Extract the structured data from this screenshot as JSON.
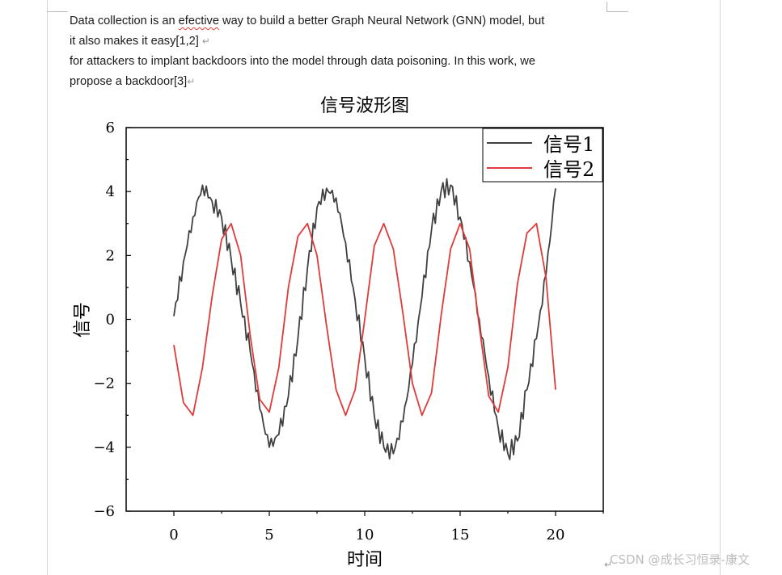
{
  "document": {
    "paragraph1": {
      "before": "Data collection is an ",
      "misspelled": "efective",
      "after": " way to build a better Graph Neural Network (GNN) model, but",
      "line2": "it also makes it easy[1,2]",
      "mark": "↵"
    },
    "paragraph2": {
      "line1": "for attackers to implant backdoors into the model through data poisoning. In this work, we",
      "line2": "propose a backdoor[3]",
      "mark": "↵"
    },
    "end_mark": "↵"
  },
  "watermark": "CSDN @成长习恒录-康文",
  "chart_data": {
    "type": "line",
    "title": "信号波形图",
    "xlabel": "时间",
    "ylabel": "信号",
    "xlim": [
      -2.5,
      22.5
    ],
    "ylim": [
      -6,
      6
    ],
    "xticks": [
      "0",
      "5",
      "10",
      "15",
      "20"
    ],
    "yticks": [
      "6",
      "4",
      "2",
      "0",
      "−2",
      "−4",
      "−6"
    ],
    "legend": {
      "position": "top-right"
    },
    "x": [
      0,
      0.5,
      1,
      1.5,
      2,
      2.5,
      3,
      3.5,
      4,
      4.5,
      5,
      5.5,
      6,
      6.5,
      7,
      7.5,
      8,
      8.5,
      9,
      9.5,
      10,
      10.5,
      11,
      11.5,
      12,
      12.5,
      13,
      13.5,
      14,
      14.5,
      15,
      15.5,
      16,
      16.5,
      17,
      17.5,
      18,
      18.5,
      19,
      19.5,
      20
    ],
    "series": [
      {
        "name": "信号1",
        "color": "#404040",
        "values": [
          0.1,
          1.8,
          3.2,
          4.2,
          3.7,
          3.2,
          1.9,
          0.5,
          -1.0,
          -2.8,
          -4.0,
          -3.6,
          -2.4,
          -0.6,
          1.6,
          3.5,
          4.1,
          3.8,
          2.4,
          0.6,
          -1.2,
          -3.0,
          -4.0,
          -4.2,
          -3.2,
          -1.4,
          0.7,
          2.8,
          4.0,
          4.2,
          3.2,
          1.8,
          0.0,
          -1.8,
          -3.4,
          -4.2,
          -3.8,
          -2.2,
          -0.6,
          1.4,
          4.1
        ]
      },
      {
        "name": "信号2",
        "color": "#e03a3a",
        "values": [
          -0.8,
          -2.6,
          -3.0,
          -1.5,
          0.7,
          2.5,
          3.0,
          2.0,
          -0.5,
          -2.5,
          -2.9,
          -1.5,
          1.0,
          2.6,
          3.0,
          2.0,
          -0.2,
          -2.2,
          -3.0,
          -2.2,
          0.0,
          2.3,
          3.0,
          2.2,
          0.2,
          -2.0,
          -3.0,
          -2.3,
          0.1,
          2.2,
          3.0,
          2.2,
          -0.2,
          -2.4,
          -2.9,
          -1.5,
          1.1,
          2.7,
          3.0,
          1.3,
          -2.2
        ]
      }
    ]
  }
}
